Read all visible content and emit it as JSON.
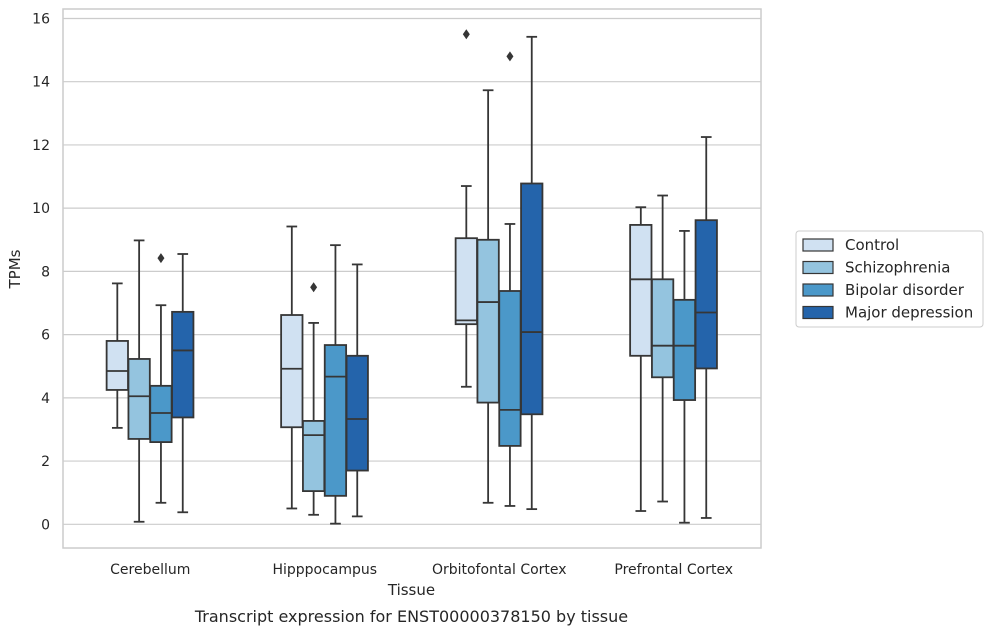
{
  "chart_data": {
    "type": "box",
    "caption": "Transcript expression for ENST00000378150 by tissue",
    "xlabel": "Tissue",
    "ylabel": "TPMs",
    "ylim": [
      -0.75,
      16.3
    ],
    "yticks": [
      "0",
      "2",
      "4",
      "6",
      "8",
      "10",
      "12",
      "14",
      "16"
    ],
    "grid": "horizontal",
    "legend_position": "right",
    "categories": [
      "Cerebellum",
      "Hipppocampus",
      "Orbitofontal Cortex",
      "Prefrontal Cortex"
    ],
    "series": [
      {
        "name": "Control",
        "color": "#d0e1f2",
        "boxes": [
          {
            "whisker_low": 3.05,
            "q1": 4.25,
            "median": 4.85,
            "q3": 5.8,
            "whisker_high": 7.62,
            "outliers": []
          },
          {
            "whisker_low": 0.5,
            "q1": 3.07,
            "median": 4.92,
            "q3": 6.62,
            "whisker_high": 9.42,
            "outliers": []
          },
          {
            "whisker_low": 4.35,
            "q1": 6.33,
            "median": 6.45,
            "q3": 9.05,
            "whisker_high": 10.7,
            "outliers": [
              15.5
            ]
          },
          {
            "whisker_low": 0.42,
            "q1": 5.33,
            "median": 7.75,
            "q3": 9.47,
            "whisker_high": 10.03,
            "outliers": []
          }
        ]
      },
      {
        "name": "Schizophrenia",
        "color": "#94c4df",
        "boxes": [
          {
            "whisker_low": 0.08,
            "q1": 2.7,
            "median": 4.05,
            "q3": 5.23,
            "whisker_high": 8.98,
            "outliers": []
          },
          {
            "whisker_low": 0.3,
            "q1": 1.05,
            "median": 2.82,
            "q3": 3.27,
            "whisker_high": 6.37,
            "outliers": [
              7.5
            ]
          },
          {
            "whisker_low": 0.68,
            "q1": 3.85,
            "median": 7.03,
            "q3": 9.0,
            "whisker_high": 13.73,
            "outliers": []
          },
          {
            "whisker_low": 0.72,
            "q1": 4.65,
            "median": 5.65,
            "q3": 7.75,
            "whisker_high": 10.4,
            "outliers": []
          }
        ]
      },
      {
        "name": "Bipolar disorder",
        "color": "#4b98c9",
        "boxes": [
          {
            "whisker_low": 0.68,
            "q1": 2.6,
            "median": 3.52,
            "q3": 4.38,
            "whisker_high": 6.93,
            "outliers": [
              8.42
            ]
          },
          {
            "whisker_low": 0.02,
            "q1": 0.9,
            "median": 4.67,
            "q3": 5.67,
            "whisker_high": 8.83,
            "outliers": []
          },
          {
            "whisker_low": 0.58,
            "q1": 2.48,
            "median": 3.62,
            "q3": 7.38,
            "whisker_high": 9.5,
            "outliers": [
              14.8
            ]
          },
          {
            "whisker_low": 0.05,
            "q1": 3.93,
            "median": 5.65,
            "q3": 7.1,
            "whisker_high": 9.28,
            "outliers": []
          }
        ]
      },
      {
        "name": "Major depression",
        "color": "#2464ab",
        "boxes": [
          {
            "whisker_low": 0.38,
            "q1": 3.38,
            "median": 5.5,
            "q3": 6.72,
            "whisker_high": 8.55,
            "outliers": []
          },
          {
            "whisker_low": 0.25,
            "q1": 1.7,
            "median": 3.33,
            "q3": 5.33,
            "whisker_high": 8.22,
            "outliers": []
          },
          {
            "whisker_low": 0.48,
            "q1": 3.48,
            "median": 6.08,
            "q3": 10.78,
            "whisker_high": 15.42,
            "outliers": []
          },
          {
            "whisker_low": 0.2,
            "q1": 4.93,
            "median": 6.7,
            "q3": 9.62,
            "whisker_high": 12.25,
            "outliers": []
          }
        ]
      }
    ]
  }
}
